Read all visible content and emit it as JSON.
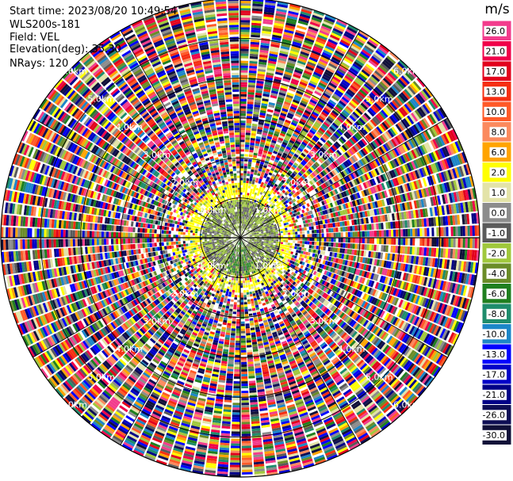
{
  "info": {
    "start_time": "Start time: 2023/08/20 10:49:54",
    "instrument": "WLS200s-181",
    "field": "Field: VEL",
    "elevation": "Elevation(deg): 35.30",
    "nrays": "NRays: 120"
  },
  "colorbar": {
    "unit": "m/s",
    "levels": [
      {
        "label": "26.0",
        "color": "#f23c8c"
      },
      {
        "label": "21.0",
        "color": "#f0004a"
      },
      {
        "label": "17.0",
        "color": "#e2001c"
      },
      {
        "label": "13.0",
        "color": "#f52e12"
      },
      {
        "label": "10.0",
        "color": "#ff5a28"
      },
      {
        "label": "8.0",
        "color": "#fb8a5e"
      },
      {
        "label": "6.0",
        "color": "#ffa400"
      },
      {
        "label": "2.0",
        "color": "#ffff00"
      },
      {
        "label": "1.0",
        "color": "#e3e3a8"
      },
      {
        "label": "0.0",
        "color": "#8c8c8c"
      },
      {
        "label": "-1.0",
        "color": "#5a5a5a"
      },
      {
        "label": "-2.0",
        "color": "#a0c83c"
      },
      {
        "label": "-4.0",
        "color": "#6a8c28"
      },
      {
        "label": "-6.0",
        "color": "#1f7f1f"
      },
      {
        "label": "-8.0",
        "color": "#1e8c6c"
      },
      {
        "label": "-10.0",
        "color": "#1c86c8"
      },
      {
        "label": "-13.0",
        "color": "#0000ff"
      },
      {
        "label": "-17.0",
        "color": "#0000c8"
      },
      {
        "label": "-21.0",
        "color": "#000087"
      },
      {
        "label": "-26.0",
        "color": "#0e0e55"
      },
      {
        "label": "-30.0",
        "color": "#101038"
      }
    ]
  },
  "chart_data": {
    "type": "heatmap",
    "projection": "polar-ppi",
    "field": "VEL",
    "unit": "m/s",
    "range_rings_km": [
      1.0,
      2.0,
      3.0,
      4.0,
      5.0,
      6.0
    ],
    "ring_label_top_right": [
      "1.0km",
      "2.0km",
      "3.0km",
      "4.0km",
      "5.0km",
      "6.0km"
    ],
    "ring_label_top_left": [
      "1.0km",
      "2.0km",
      "3.0km",
      "4.0km",
      "5.0km",
      "6.0km"
    ],
    "ring_label_bottom_left": [
      "1.0km",
      "2.0km",
      "3.0km",
      "4.0km",
      "5.0km",
      "6.0km"
    ],
    "ring_label_bottom_right": [
      "1.0km",
      "2.0km",
      "3.0km",
      "4.0km",
      "5.0km",
      "6.0km"
    ],
    "max_range_km": 6.0,
    "azimuth_lines_deg": [
      0,
      30,
      60,
      90,
      120,
      150,
      180,
      210,
      240,
      270,
      300,
      330
    ],
    "n_rays": 120,
    "near_field_km": 1.0,
    "near_field_color_levels": [
      -1.0,
      -2.0,
      -4.0
    ],
    "transition_color_levels": [
      2.0,
      1.0,
      -2.0
    ],
    "far_field": "noise across full color scale"
  }
}
